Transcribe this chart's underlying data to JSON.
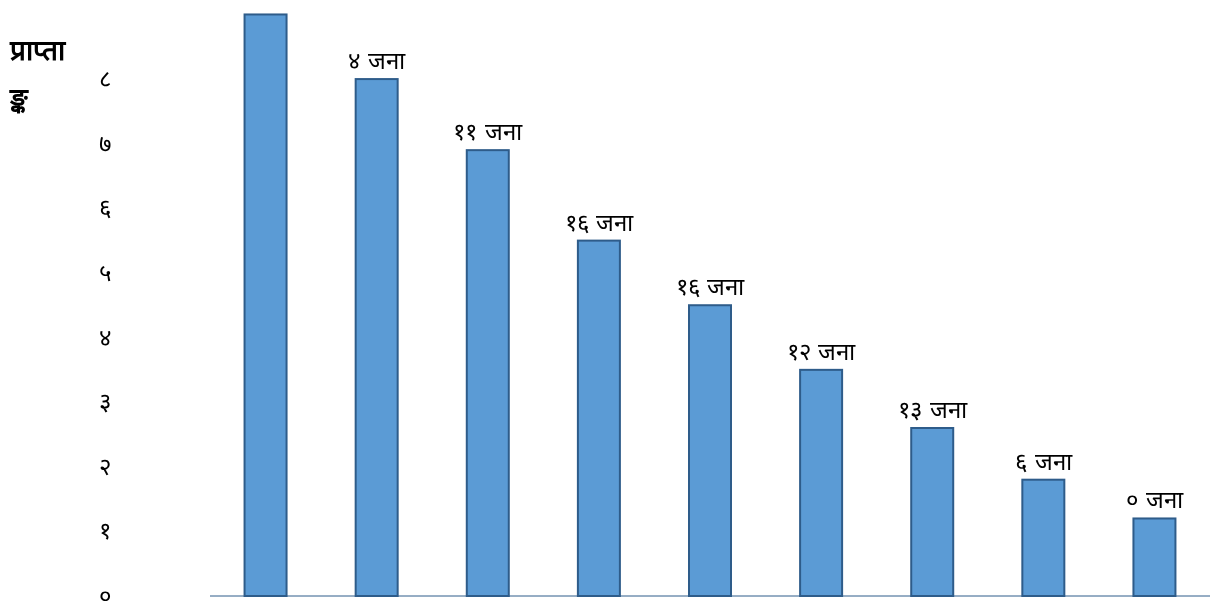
{
  "chart_data": {
    "type": "bar",
    "ylabel": "प्राप्ता\nङ्क",
    "categories": [
      null,
      null,
      null,
      null,
      null,
      null,
      null,
      null,
      null
    ],
    "values": [
      9,
      8,
      6.9,
      5.5,
      4.5,
      3.5,
      2.6,
      1.8,
      1.2
    ],
    "annotations": [
      {
        "text": "४ जना",
        "y": 8
      },
      {
        "text": "११ जना",
        "y": 6.9
      },
      {
        "text": "१६ जना",
        "y": 5.5
      },
      {
        "text": "१६ जना",
        "y": 4.5
      },
      {
        "text": "१२ जना",
        "y": 3.5
      },
      {
        "text": "१३ जना",
        "y": 2.6
      },
      {
        "text": "६ जना",
        "y": 1.8
      },
      {
        "text": "० जना",
        "y": 1.2
      }
    ],
    "color": "#5b9bd5",
    "ylim": [
      0,
      9.1
    ],
    "yticks": [
      {
        "value": 0,
        "label": "०"
      },
      {
        "value": 1,
        "label": "१"
      },
      {
        "value": 2,
        "label": "२"
      },
      {
        "value": 3,
        "label": "३"
      },
      {
        "value": 4,
        "label": "४"
      },
      {
        "value": 5,
        "label": "५"
      },
      {
        "value": 6,
        "label": "६"
      },
      {
        "value": 7,
        "label": "७"
      },
      {
        "value": 8,
        "label": "८"
      }
    ],
    "tick_labels": "y",
    "grid": false
  }
}
